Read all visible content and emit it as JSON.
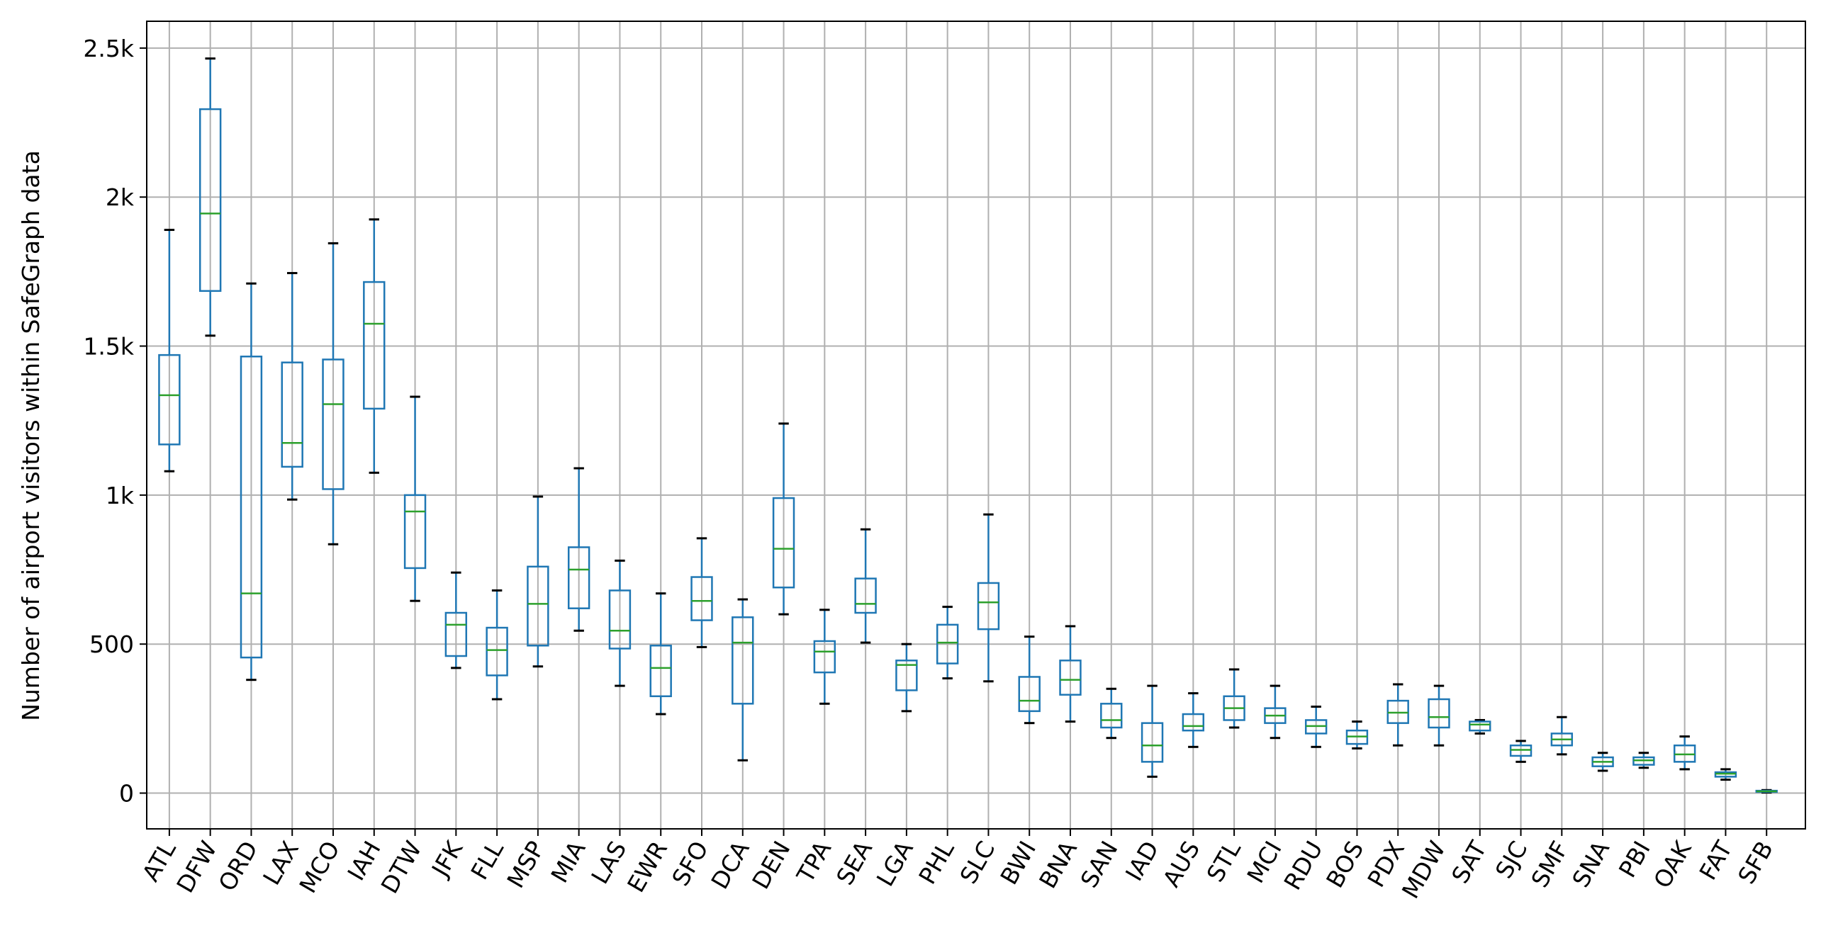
{
  "chart_data": {
    "type": "box",
    "title": "",
    "xlabel": "",
    "ylabel": "Number of airport visitors within SafeGraph data",
    "ylim": [
      -120,
      2590
    ],
    "yticks": [
      0,
      500,
      1000,
      1500,
      2000,
      2500
    ],
    "ytick_labels": [
      "0",
      "500",
      "1k",
      "1.5k",
      "2k",
      "2.5k"
    ],
    "grid": true,
    "legend": "none",
    "colors": {
      "box": "#1f77b4",
      "median": "#2ca02c",
      "cap": "#000000",
      "grid": "#b0b0b0"
    },
    "categories": [
      "ATL",
      "DFW",
      "ORD",
      "LAX",
      "MCO",
      "IAH",
      "DTW",
      "JFK",
      "FLL",
      "MSP",
      "MIA",
      "LAS",
      "EWR",
      "SFO",
      "DCA",
      "DEN",
      "TPA",
      "SEA",
      "LGA",
      "PHL",
      "SLC",
      "BWI",
      "BNA",
      "SAN",
      "IAD",
      "AUS",
      "STL",
      "MCI",
      "RDU",
      "BOS",
      "PDX",
      "MDW",
      "SAT",
      "SJC",
      "SMF",
      "SNA",
      "PBI",
      "OAK",
      "FAT",
      "SFB"
    ],
    "boxes": [
      {
        "label": "ATL",
        "whislo": 1080,
        "q1": 1170,
        "med": 1335,
        "q3": 1470,
        "whishi": 1890
      },
      {
        "label": "DFW",
        "whislo": 1535,
        "q1": 1685,
        "med": 1945,
        "q3": 2295,
        "whishi": 2465
      },
      {
        "label": "ORD",
        "whislo": 380,
        "q1": 455,
        "med": 670,
        "q3": 1465,
        "whishi": 1710
      },
      {
        "label": "LAX",
        "whislo": 985,
        "q1": 1095,
        "med": 1175,
        "q3": 1445,
        "whishi": 1745
      },
      {
        "label": "MCO",
        "whislo": 835,
        "q1": 1020,
        "med": 1305,
        "q3": 1455,
        "whishi": 1845
      },
      {
        "label": "IAH",
        "whislo": 1075,
        "q1": 1290,
        "med": 1575,
        "q3": 1715,
        "whishi": 1925
      },
      {
        "label": "DTW",
        "whislo": 645,
        "q1": 755,
        "med": 945,
        "q3": 1000,
        "whishi": 1330
      },
      {
        "label": "JFK",
        "whislo": 420,
        "q1": 460,
        "med": 565,
        "q3": 605,
        "whishi": 740
      },
      {
        "label": "FLL",
        "whislo": 315,
        "q1": 395,
        "med": 480,
        "q3": 555,
        "whishi": 680
      },
      {
        "label": "MSP",
        "whislo": 425,
        "q1": 495,
        "med": 635,
        "q3": 760,
        "whishi": 995
      },
      {
        "label": "MIA",
        "whislo": 545,
        "q1": 620,
        "med": 750,
        "q3": 825,
        "whishi": 1090
      },
      {
        "label": "LAS",
        "whislo": 360,
        "q1": 485,
        "med": 545,
        "q3": 680,
        "whishi": 780
      },
      {
        "label": "EWR",
        "whislo": 265,
        "q1": 325,
        "med": 420,
        "q3": 495,
        "whishi": 670
      },
      {
        "label": "SFO",
        "whislo": 490,
        "q1": 580,
        "med": 645,
        "q3": 725,
        "whishi": 855
      },
      {
        "label": "DCA",
        "whislo": 110,
        "q1": 300,
        "med": 505,
        "q3": 590,
        "whishi": 650
      },
      {
        "label": "DEN",
        "whislo": 600,
        "q1": 690,
        "med": 820,
        "q3": 990,
        "whishi": 1240
      },
      {
        "label": "TPA",
        "whislo": 300,
        "q1": 405,
        "med": 475,
        "q3": 510,
        "whishi": 615
      },
      {
        "label": "SEA",
        "whislo": 505,
        "q1": 605,
        "med": 635,
        "q3": 720,
        "whishi": 885
      },
      {
        "label": "LGA",
        "whislo": 275,
        "q1": 345,
        "med": 430,
        "q3": 445,
        "whishi": 500
      },
      {
        "label": "PHL",
        "whislo": 385,
        "q1": 435,
        "med": 505,
        "q3": 565,
        "whishi": 625
      },
      {
        "label": "SLC",
        "whislo": 375,
        "q1": 550,
        "med": 640,
        "q3": 705,
        "whishi": 935
      },
      {
        "label": "BWI",
        "whislo": 235,
        "q1": 275,
        "med": 310,
        "q3": 390,
        "whishi": 525
      },
      {
        "label": "BNA",
        "whislo": 240,
        "q1": 330,
        "med": 380,
        "q3": 445,
        "whishi": 560
      },
      {
        "label": "SAN",
        "whislo": 185,
        "q1": 220,
        "med": 245,
        "q3": 300,
        "whishi": 350
      },
      {
        "label": "IAD",
        "whislo": 55,
        "q1": 105,
        "med": 160,
        "q3": 235,
        "whishi": 360
      },
      {
        "label": "AUS",
        "whislo": 155,
        "q1": 210,
        "med": 225,
        "q3": 265,
        "whishi": 335
      },
      {
        "label": "STL",
        "whislo": 220,
        "q1": 245,
        "med": 285,
        "q3": 325,
        "whishi": 415
      },
      {
        "label": "MCI",
        "whislo": 185,
        "q1": 235,
        "med": 260,
        "q3": 285,
        "whishi": 360
      },
      {
        "label": "RDU",
        "whislo": 155,
        "q1": 200,
        "med": 225,
        "q3": 245,
        "whishi": 290
      },
      {
        "label": "BOS",
        "whislo": 150,
        "q1": 165,
        "med": 190,
        "q3": 210,
        "whishi": 240
      },
      {
        "label": "PDX",
        "whislo": 160,
        "q1": 235,
        "med": 270,
        "q3": 310,
        "whishi": 365
      },
      {
        "label": "MDW",
        "whislo": 160,
        "q1": 220,
        "med": 255,
        "q3": 315,
        "whishi": 360
      },
      {
        "label": "SAT",
        "whislo": 200,
        "q1": 210,
        "med": 230,
        "q3": 240,
        "whishi": 245
      },
      {
        "label": "SJC",
        "whislo": 105,
        "q1": 125,
        "med": 145,
        "q3": 160,
        "whishi": 175
      },
      {
        "label": "SMF",
        "whislo": 130,
        "q1": 160,
        "med": 180,
        "q3": 200,
        "whishi": 255
      },
      {
        "label": "SNA",
        "whislo": 75,
        "q1": 90,
        "med": 105,
        "q3": 120,
        "whishi": 135
      },
      {
        "label": "PBI",
        "whislo": 85,
        "q1": 95,
        "med": 110,
        "q3": 120,
        "whishi": 135
      },
      {
        "label": "OAK",
        "whislo": 80,
        "q1": 105,
        "med": 130,
        "q3": 160,
        "whishi": 190
      },
      {
        "label": "FAT",
        "whislo": 45,
        "q1": 55,
        "med": 65,
        "q3": 70,
        "whishi": 80
      },
      {
        "label": "SFB",
        "whislo": 2,
        "q1": 4,
        "med": 6,
        "q3": 8,
        "whishi": 10
      }
    ]
  }
}
